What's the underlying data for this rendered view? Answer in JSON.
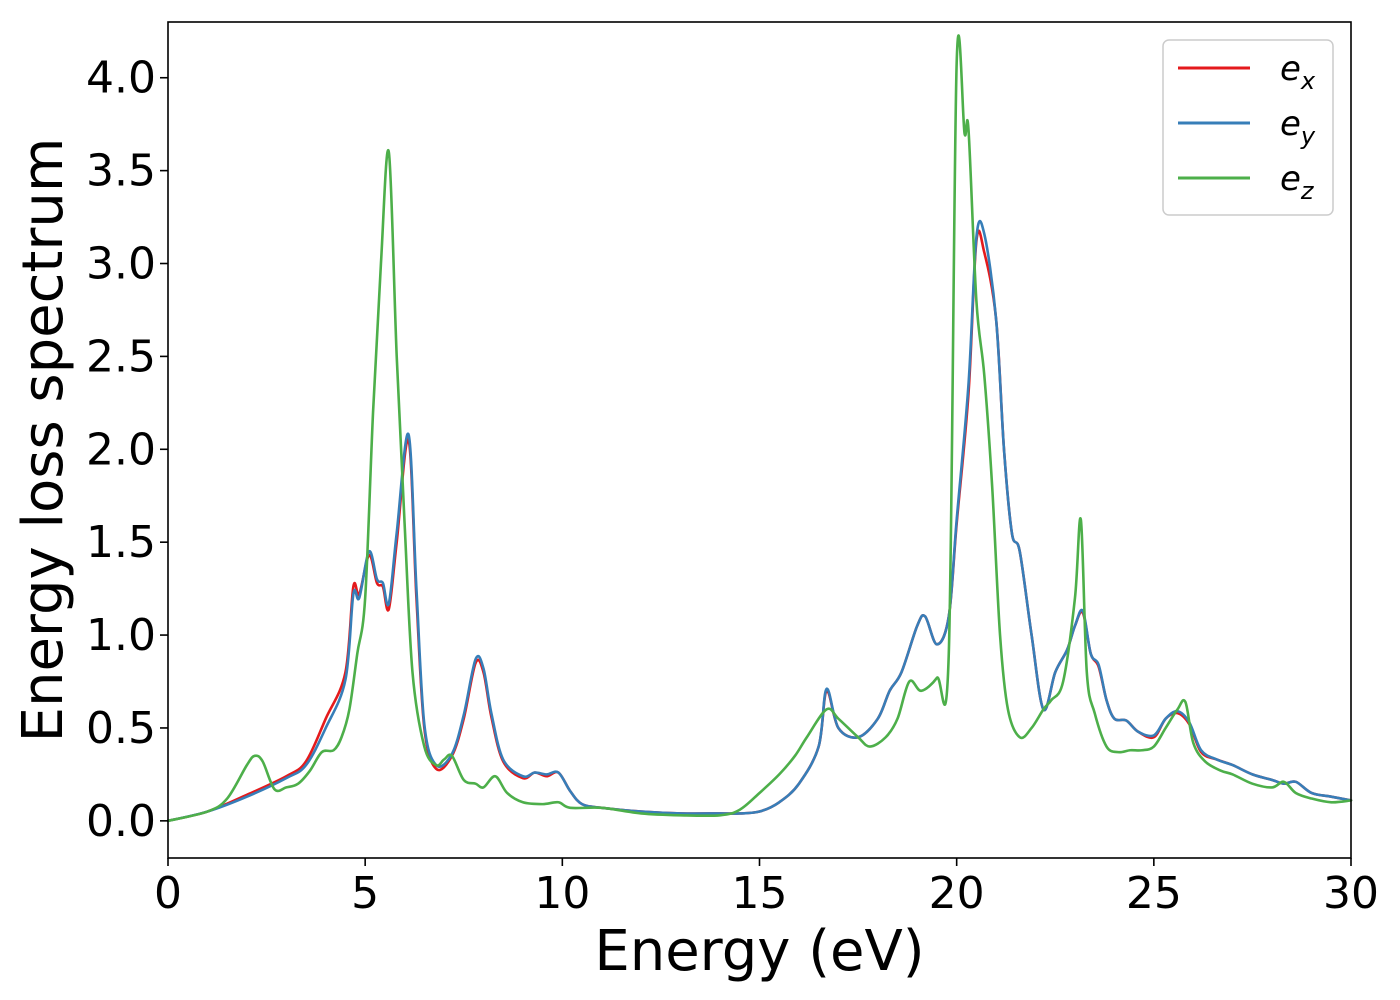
{
  "chart_data": {
    "type": "line",
    "title": "",
    "xlabel": "Energy (eV)",
    "ylabel": "Energy loss spectrum",
    "xlim": [
      0,
      30
    ],
    "ylim": [
      -0.2,
      4.3
    ],
    "xticks": [
      0,
      5,
      10,
      15,
      20,
      25,
      30
    ],
    "xtick_labels": [
      "0",
      "5",
      "10",
      "15",
      "20",
      "25",
      "30"
    ],
    "yticks": [
      0.0,
      0.5,
      1.0,
      1.5,
      2.0,
      2.5,
      3.0,
      3.5,
      4.0
    ],
    "ytick_labels": [
      "0.0",
      "0.5",
      "1.0",
      "1.5",
      "2.0",
      "2.5",
      "3.0",
      "3.5",
      "4.0"
    ],
    "grid": false,
    "legend_position": "top-right",
    "series": [
      {
        "name": "e_x",
        "legend_base": "e",
        "legend_sub": "x",
        "color": "#e41a1c",
        "x": [
          0,
          1,
          2,
          3,
          3.5,
          4,
          4.5,
          4.7,
          4.85,
          5.1,
          5.3,
          5.45,
          5.6,
          5.8,
          6.1,
          6.3,
          6.5,
          6.8,
          7.2,
          7.5,
          7.8,
          8.0,
          8.2,
          8.5,
          9.0,
          9.3,
          9.6,
          9.9,
          10.2,
          10.5,
          11,
          12,
          13,
          14,
          14.5,
          15,
          15.5,
          16,
          16.5,
          16.7,
          17,
          17.5,
          18,
          18.3,
          18.6,
          19.0,
          19.2,
          19.5,
          19.8,
          20.0,
          20.3,
          20.5,
          20.7,
          21.0,
          21.2,
          21.4,
          21.6,
          21.9,
          22.2,
          22.5,
          22.8,
          23.0,
          23.2,
          23.4,
          23.6,
          23.8,
          24.0,
          24.3,
          24.6,
          25.0,
          25.3,
          25.6,
          25.9,
          26.2,
          26.6,
          27,
          27.5,
          28,
          28.3,
          28.6,
          29,
          29.5,
          30
        ],
        "y": [
          0.0,
          0.05,
          0.14,
          0.24,
          0.32,
          0.55,
          0.8,
          1.26,
          1.22,
          1.43,
          1.28,
          1.26,
          1.14,
          1.5,
          2.05,
          1.2,
          0.5,
          0.28,
          0.35,
          0.55,
          0.85,
          0.8,
          0.56,
          0.32,
          0.23,
          0.26,
          0.24,
          0.26,
          0.16,
          0.09,
          0.07,
          0.05,
          0.04,
          0.04,
          0.04,
          0.05,
          0.1,
          0.2,
          0.4,
          0.7,
          0.5,
          0.45,
          0.55,
          0.7,
          0.8,
          1.05,
          1.1,
          0.95,
          1.1,
          1.6,
          2.3,
          3.12,
          3.06,
          2.7,
          2.0,
          1.55,
          1.45,
          1.0,
          0.6,
          0.8,
          0.92,
          1.05,
          1.12,
          0.9,
          0.83,
          0.65,
          0.55,
          0.54,
          0.48,
          0.45,
          0.55,
          0.58,
          0.52,
          0.37,
          0.33,
          0.3,
          0.25,
          0.22,
          0.2,
          0.21,
          0.15,
          0.13,
          0.11
        ]
      },
      {
        "name": "e_y",
        "legend_base": "e",
        "legend_sub": "y",
        "color": "#377eb8",
        "x": [
          0,
          1,
          2,
          3,
          3.5,
          4,
          4.5,
          4.7,
          4.85,
          5.1,
          5.3,
          5.45,
          5.6,
          5.8,
          6.1,
          6.3,
          6.5,
          6.8,
          7.2,
          7.5,
          7.8,
          8.0,
          8.2,
          8.5,
          9.0,
          9.3,
          9.6,
          9.9,
          10.2,
          10.5,
          11,
          12,
          13,
          14,
          14.5,
          15,
          15.5,
          16,
          16.5,
          16.7,
          17,
          17.5,
          18,
          18.3,
          18.6,
          19.0,
          19.2,
          19.5,
          19.8,
          20.0,
          20.3,
          20.5,
          20.7,
          21.0,
          21.2,
          21.4,
          21.6,
          21.9,
          22.2,
          22.5,
          22.8,
          23.0,
          23.2,
          23.4,
          23.6,
          23.8,
          24.0,
          24.3,
          24.6,
          25.0,
          25.3,
          25.6,
          25.9,
          26.2,
          26.6,
          27,
          27.5,
          28,
          28.3,
          28.6,
          29,
          29.5,
          30
        ],
        "y": [
          0.0,
          0.05,
          0.13,
          0.23,
          0.3,
          0.5,
          0.76,
          1.22,
          1.2,
          1.45,
          1.3,
          1.28,
          1.17,
          1.55,
          2.08,
          1.25,
          0.52,
          0.3,
          0.36,
          0.57,
          0.87,
          0.82,
          0.58,
          0.33,
          0.24,
          0.26,
          0.25,
          0.26,
          0.16,
          0.09,
          0.07,
          0.05,
          0.04,
          0.04,
          0.04,
          0.05,
          0.1,
          0.2,
          0.4,
          0.71,
          0.5,
          0.45,
          0.55,
          0.7,
          0.8,
          1.05,
          1.1,
          0.95,
          1.1,
          1.62,
          2.35,
          3.14,
          3.16,
          2.7,
          2.0,
          1.55,
          1.45,
          1.0,
          0.6,
          0.8,
          0.92,
          1.05,
          1.13,
          0.9,
          0.84,
          0.65,
          0.55,
          0.54,
          0.48,
          0.46,
          0.55,
          0.59,
          0.53,
          0.38,
          0.33,
          0.3,
          0.25,
          0.22,
          0.2,
          0.21,
          0.15,
          0.13,
          0.11
        ]
      },
      {
        "name": "e_z",
        "legend_base": "e",
        "legend_sub": "z",
        "color": "#4daf4a",
        "x": [
          0,
          1,
          1.5,
          2.0,
          2.2,
          2.4,
          2.7,
          3.0,
          3.3,
          3.6,
          3.9,
          4.2,
          4.4,
          4.6,
          4.8,
          5.0,
          5.2,
          5.4,
          5.6,
          5.8,
          6.0,
          6.2,
          6.5,
          6.8,
          7.0,
          7.2,
          7.5,
          7.8,
          8.0,
          8.3,
          8.6,
          9.0,
          9.5,
          9.9,
          10.2,
          11,
          12,
          13,
          14,
          14.5,
          15,
          15.5,
          15.9,
          16.2,
          16.7,
          17.0,
          17.5,
          17.8,
          18.2,
          18.5,
          18.8,
          19.1,
          19.5,
          19.8,
          20.0,
          20.2,
          20.3,
          20.5,
          20.7,
          20.9,
          21.1,
          21.3,
          21.6,
          21.9,
          22.2,
          22.4,
          22.7,
          23.0,
          23.15,
          23.3,
          23.5,
          23.8,
          24.1,
          24.4,
          24.7,
          25.0,
          25.3,
          25.6,
          25.8,
          26.0,
          26.3,
          26.7,
          27.0,
          27.5,
          28.0,
          28.3,
          28.6,
          29,
          29.5,
          30
        ],
        "y": [
          0.0,
          0.05,
          0.12,
          0.3,
          0.35,
          0.32,
          0.17,
          0.18,
          0.2,
          0.27,
          0.37,
          0.38,
          0.45,
          0.6,
          0.9,
          1.2,
          2.2,
          3.0,
          3.6,
          2.5,
          1.6,
          0.8,
          0.4,
          0.3,
          0.33,
          0.35,
          0.22,
          0.2,
          0.18,
          0.24,
          0.15,
          0.1,
          0.09,
          0.1,
          0.07,
          0.07,
          0.04,
          0.03,
          0.03,
          0.06,
          0.15,
          0.25,
          0.35,
          0.45,
          0.6,
          0.55,
          0.45,
          0.4,
          0.45,
          0.55,
          0.75,
          0.7,
          0.77,
          0.9,
          4.08,
          3.7,
          3.72,
          2.8,
          2.4,
          1.8,
          1.0,
          0.6,
          0.45,
          0.5,
          0.6,
          0.65,
          0.75,
          1.2,
          1.62,
          0.8,
          0.58,
          0.4,
          0.37,
          0.38,
          0.38,
          0.4,
          0.5,
          0.6,
          0.64,
          0.42,
          0.32,
          0.27,
          0.25,
          0.2,
          0.18,
          0.21,
          0.15,
          0.12,
          0.1,
          0.11
        ]
      }
    ]
  }
}
